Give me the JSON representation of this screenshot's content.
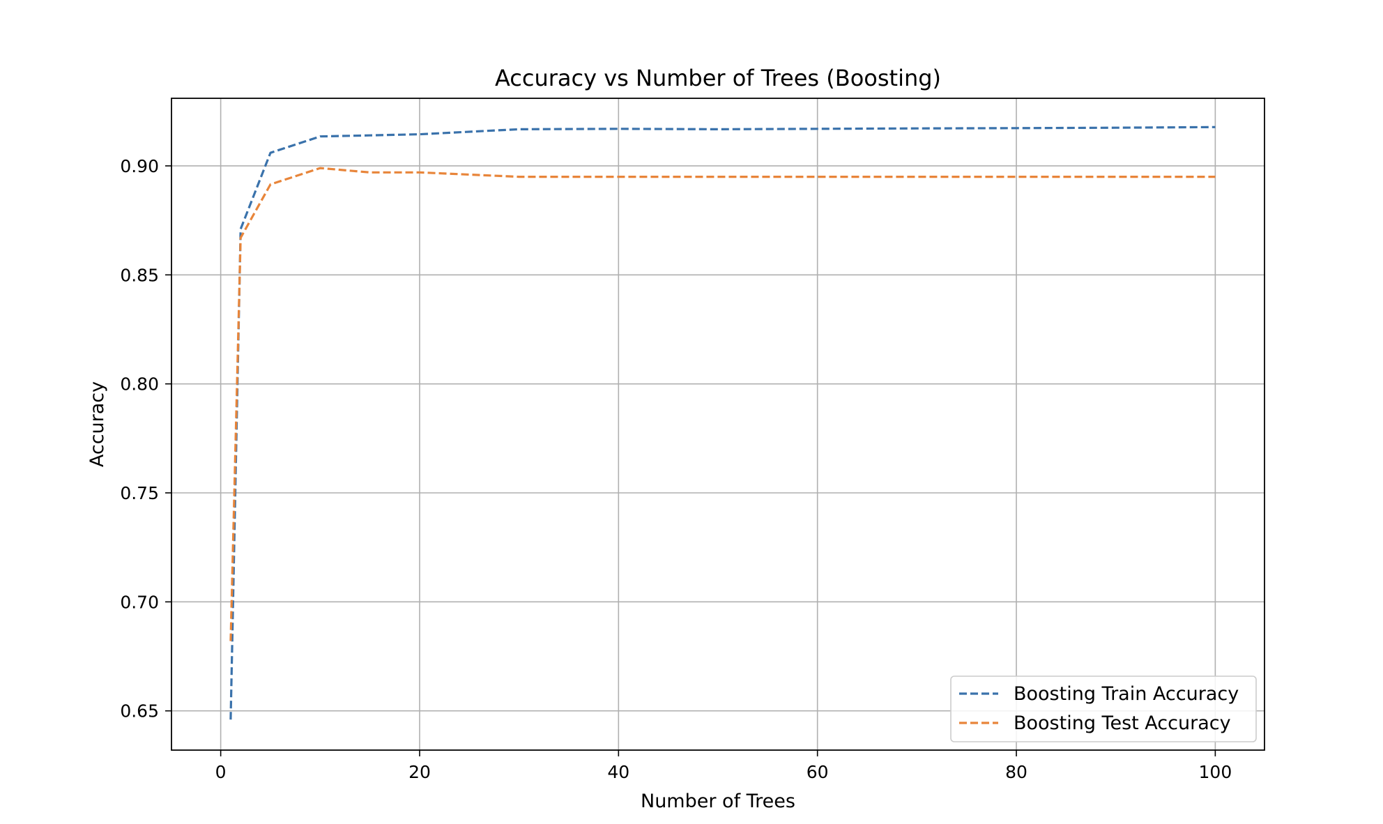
{
  "chart_data": {
    "type": "line",
    "title": "Accuracy vs Number of Trees (Boosting)",
    "xlabel": "Number of Trees",
    "ylabel": "Accuracy",
    "xlim": [
      -4.95,
      104.95
    ],
    "ylim": [
      0.632,
      0.931
    ],
    "xticks": [
      0,
      20,
      40,
      60,
      80,
      100
    ],
    "yticks": [
      0.65,
      0.7,
      0.75,
      0.8,
      0.85,
      0.9
    ],
    "xtick_labels": [
      "0",
      "20",
      "40",
      "60",
      "80",
      "100"
    ],
    "ytick_labels": [
      "0.65",
      "0.70",
      "0.75",
      "0.80",
      "0.85",
      "0.90"
    ],
    "grid": true,
    "legend_position": "lower-right",
    "series": [
      {
        "name": "Boosting Train Accuracy",
        "color": "#3a72ab",
        "linestyle": "dashed",
        "x": [
          1,
          2,
          5,
          10,
          15,
          20,
          30,
          40,
          50,
          60,
          70,
          80,
          90,
          100
        ],
        "y": [
          0.646,
          0.871,
          0.906,
          0.9135,
          0.914,
          0.9145,
          0.9168,
          0.917,
          0.9168,
          0.917,
          0.9172,
          0.9173,
          0.9175,
          0.9178
        ]
      },
      {
        "name": "Boosting Test Accuracy",
        "color": "#e8853a",
        "linestyle": "dashed",
        "x": [
          1,
          2,
          5,
          10,
          15,
          20,
          30,
          40,
          50,
          60,
          70,
          80,
          90,
          100
        ],
        "y": [
          0.682,
          0.867,
          0.8915,
          0.899,
          0.897,
          0.897,
          0.895,
          0.895,
          0.895,
          0.895,
          0.895,
          0.895,
          0.895,
          0.895
        ]
      }
    ]
  }
}
